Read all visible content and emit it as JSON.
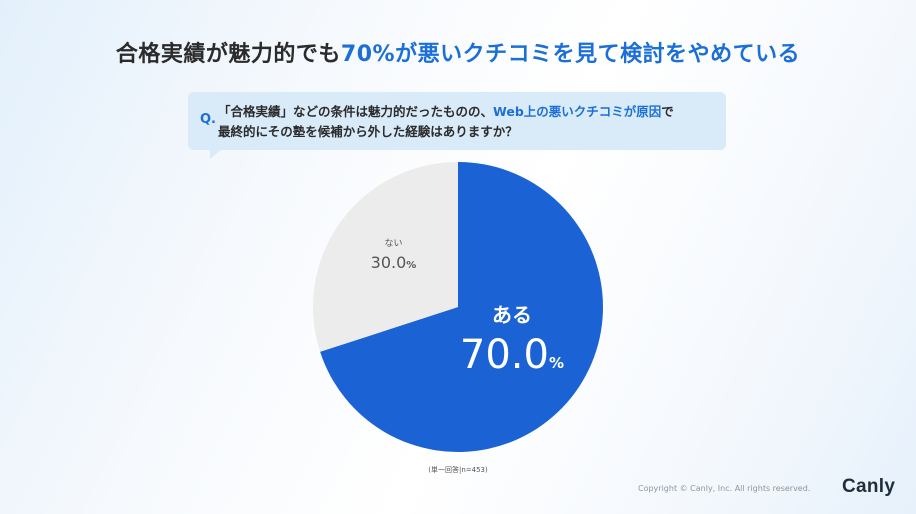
{
  "header": {
    "title_part1": "合格実績が魅力的でも",
    "title_highlight": "70%が悪いクチコミを見て検討をやめている"
  },
  "question": {
    "mark": "Q.",
    "line1_part1": "「合格実績」などの条件は魅力的だったものの、",
    "line1_highlight": "Web上の悪いクチコミが原因",
    "line1_part2": "で",
    "line2": "最終的にその塾を候補から外した経験はありますか？"
  },
  "chart_data": {
    "type": "pie",
    "title": "",
    "slices": [
      {
        "label": "ある",
        "value": 70.0,
        "display": "70.0",
        "unit": "%",
        "color": "#1b63d4",
        "text_color": "#ffffff"
      },
      {
        "label": "ない",
        "value": 30.0,
        "display": "30.0",
        "unit": "%",
        "color": "#ececec",
        "text_color": "#555555"
      }
    ],
    "start": "12 o'clock",
    "direction": "clockwise"
  },
  "footnote": "(単一回答|n=453)",
  "footer": {
    "copyright": "Copyright © Canly, Inc. All rights reserved.",
    "logo": "Canly"
  }
}
